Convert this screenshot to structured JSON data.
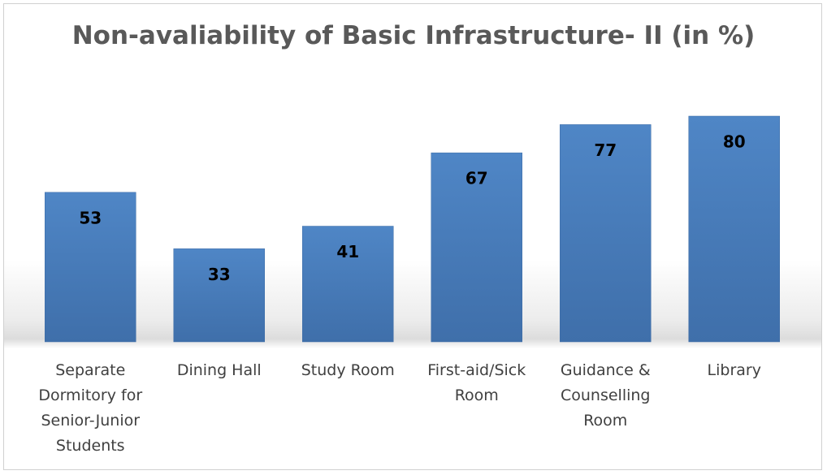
{
  "chart_data": {
    "type": "bar",
    "title": "Non-avaliability of Basic Infrastructure- II (in %)",
    "categories": [
      "Separate Dormitory for Senior-Junior Students",
      "Dining Hall",
      "Study Room",
      "First-aid/Sick Room",
      "Guidance & Counselling Room",
      "Library"
    ],
    "values": [
      53,
      33,
      41,
      67,
      77,
      80
    ],
    "color": "#4a7ebb"
  }
}
